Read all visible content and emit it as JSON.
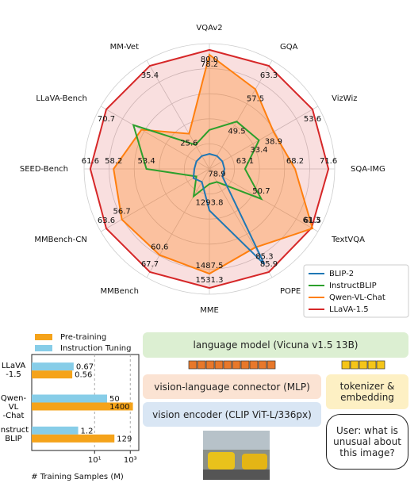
{
  "chart_data": [
    {
      "type": "radar",
      "categories": [
        "VQAv2",
        "GQA",
        "VizWiz",
        "SQA-IMG",
        "TextVQA",
        "POPE",
        "MME",
        "MMBench",
        "MMBench-CN",
        "SEED-Bench",
        "LLaVA-Bench",
        "MM-Vet"
      ],
      "series": [
        {
          "name": "BLIP-2",
          "color": "#1f77b4",
          "values": [
            41.0,
            41.0,
            19.6,
            61.0,
            42.5,
            85.3,
            1293.8,
            30.0,
            25.0,
            46.4,
            38.1,
            22.4
          ],
          "value_labels": [
            null,
            null,
            null,
            null,
            null,
            "85.3",
            "1293.8",
            null,
            null,
            null,
            null,
            null
          ]
        },
        {
          "name": "InstructBLIP",
          "color": "#2ca02c",
          "values": [
            50.0,
            49.5,
            33.4,
            63.1,
            50.7,
            78.9,
            1212.8,
            36.0,
            23.7,
            53.4,
            60.9,
            24.0
          ],
          "value_labels": [
            null,
            "49.5",
            "33.4",
            "63.1",
            "50.7",
            "78.9",
            null,
            null,
            null,
            "53.4",
            null,
            null
          ]
        },
        {
          "name": "Qwen-VL-Chat",
          "color": "#ff7f0e",
          "values": [
            78.2,
            57.5,
            38.9,
            68.2,
            61.5,
            84.0,
            1487.5,
            60.6,
            56.7,
            58.2,
            58.0,
            25.6
          ],
          "value_labels": [
            "78.2",
            "57.5",
            "38.9",
            "68.2",
            "61.5",
            null,
            "1487.5",
            "60.6",
            "56.7",
            "58.2",
            null,
            "25.6"
          ]
        },
        {
          "name": "LLaVA-1.5",
          "color": "#d62728",
          "values": [
            80.0,
            63.3,
            53.6,
            71.6,
            61.3,
            85.9,
            1531.3,
            67.7,
            63.6,
            61.6,
            70.7,
            35.4
          ],
          "value_labels": [
            "80.0",
            "63.3",
            "53.6",
            "71.6",
            "61.3",
            "85.9",
            "1531.3",
            "67.7",
            "63.6",
            "61.6",
            "70.7",
            "35.4"
          ]
        }
      ],
      "legend": "lower right",
      "grid": true
    },
    {
      "type": "barh",
      "log_x": true,
      "categories": [
        "LLaVA\n-1.5",
        "Qwen-VL\n-Chat",
        "Instruct\nBLIP"
      ],
      "series": [
        {
          "name": "Pre-training",
          "color": "#f5a31a",
          "values": [
            0.56,
            1400,
            129
          ]
        },
        {
          "name": "Instruction Tuning",
          "color": "#87cde8",
          "values": [
            0.67,
            50,
            1.2
          ]
        }
      ],
      "xlabel": "# Training Samples (M)",
      "xlim": [
        0.003,
        3000
      ],
      "xticks": [
        {
          "value": 10,
          "label": "10¹"
        },
        {
          "value": 1000,
          "label": "10³"
        }
      ],
      "legend": "upper left",
      "grid": true
    }
  ],
  "diagram": {
    "language_model": "language model (Vicuna v1.5 13B)",
    "connector": "vision-language connector (MLP)",
    "tokenizer": "tokenizer & embedding",
    "encoder": "vision encoder (CLIP ViT-L/336px)",
    "user": "User: what is unusual about this image?"
  }
}
